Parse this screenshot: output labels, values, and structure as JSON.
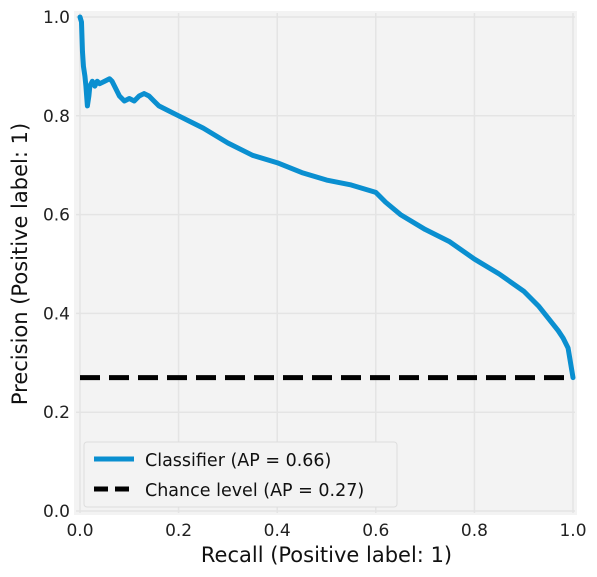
{
  "chart_data": {
    "type": "line",
    "xlabel": "Recall (Positive label: 1)",
    "ylabel": "Precision (Positive label: 1)",
    "xlim": [
      0.0,
      1.0
    ],
    "ylim": [
      0.0,
      1.0
    ],
    "xticks": [
      "0.0",
      "0.2",
      "0.4",
      "0.6",
      "0.8",
      "1.0"
    ],
    "yticks": [
      "0.0",
      "0.2",
      "0.4",
      "0.6",
      "0.8",
      "1.0"
    ],
    "grid": true,
    "legend_position": "lower-left",
    "colors": {
      "classifier": "#0a8fd0",
      "chance": "#000000",
      "plot_background": "#f3f3f3",
      "grid": "#e4e4e4"
    },
    "series": [
      {
        "name": "Classifier (AP = 0.66)",
        "style": "solid",
        "x": [
          0.0,
          0.003,
          0.005,
          0.007,
          0.01,
          0.012,
          0.015,
          0.018,
          0.02,
          0.025,
          0.03,
          0.035,
          0.04,
          0.05,
          0.06,
          0.065,
          0.07,
          0.08,
          0.09,
          0.1,
          0.11,
          0.12,
          0.13,
          0.14,
          0.15,
          0.16,
          0.18,
          0.2,
          0.22,
          0.25,
          0.3,
          0.35,
          0.4,
          0.45,
          0.5,
          0.55,
          0.6,
          0.62,
          0.65,
          0.7,
          0.75,
          0.8,
          0.85,
          0.9,
          0.93,
          0.95,
          0.97,
          0.98,
          0.99,
          0.995,
          1.0
        ],
        "y": [
          1.0,
          0.99,
          0.93,
          0.9,
          0.88,
          0.86,
          0.82,
          0.84,
          0.86,
          0.87,
          0.86,
          0.87,
          0.865,
          0.87,
          0.875,
          0.87,
          0.86,
          0.84,
          0.83,
          0.835,
          0.83,
          0.84,
          0.845,
          0.84,
          0.83,
          0.82,
          0.81,
          0.8,
          0.79,
          0.775,
          0.745,
          0.72,
          0.705,
          0.685,
          0.67,
          0.66,
          0.645,
          0.625,
          0.6,
          0.57,
          0.545,
          0.51,
          0.48,
          0.445,
          0.415,
          0.39,
          0.365,
          0.35,
          0.33,
          0.3,
          0.27
        ]
      },
      {
        "name": "Chance level (AP = 0.27)",
        "style": "dashed",
        "x": [
          0.0,
          1.0
        ],
        "y": [
          0.27,
          0.27
        ]
      }
    ]
  }
}
